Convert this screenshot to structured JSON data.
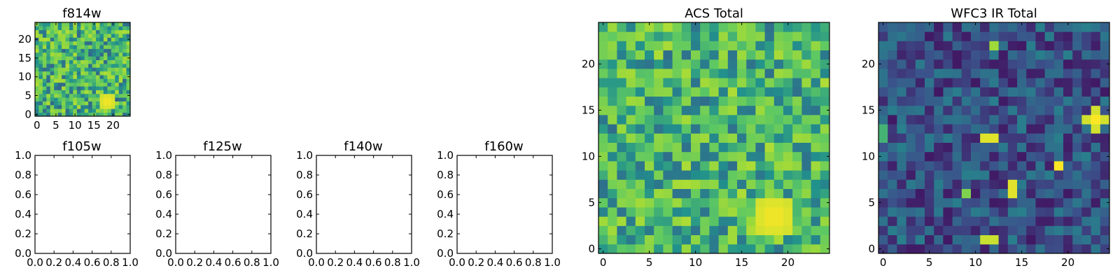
{
  "figure": {
    "description_free": true,
    "colormap": [
      "#440154",
      "#3b528b",
      "#21918c",
      "#5ec962",
      "#a0da39",
      "#fde725"
    ]
  },
  "chart_data": [
    {
      "id": "f814w",
      "type": "heatmap",
      "title": "f814w",
      "grid_size": 25,
      "xlim": [
        -0.5,
        24.5
      ],
      "ylim": [
        -0.5,
        24.5
      ],
      "xticks": [
        0,
        5,
        10,
        15,
        20
      ],
      "xtick_labels": [
        "0",
        "5",
        "10",
        "15",
        "20"
      ],
      "yticks": [
        0,
        5,
        10,
        15,
        20
      ],
      "ytick_labels": [
        "0",
        "5",
        "10",
        "15",
        "20"
      ],
      "noise": {
        "mean": 0.55,
        "spread": 0.18,
        "seed": 11
      },
      "hot_spots": [
        {
          "x": 18.5,
          "y": 3.5,
          "radius": 2.2,
          "value": 1.0
        }
      ]
    },
    {
      "id": "f105w",
      "type": "empty",
      "title": "f105w",
      "xticks": [
        0.0,
        0.2,
        0.4,
        0.6,
        0.8,
        1.0
      ],
      "xtick_labels": [
        "0.0",
        "0.2",
        "0.4",
        "0.6",
        "0.8",
        "1.0"
      ],
      "yticks": [
        0.0,
        0.2,
        0.4,
        0.6,
        0.8,
        1.0
      ],
      "ytick_labels": [
        "0.0",
        "0.2",
        "0.4",
        "0.6",
        "0.8",
        "1.0"
      ]
    },
    {
      "id": "f125w",
      "type": "empty",
      "title": "f125w",
      "xticks": [
        0.0,
        0.2,
        0.4,
        0.6,
        0.8,
        1.0
      ],
      "xtick_labels": [
        "0.0",
        "0.2",
        "0.4",
        "0.6",
        "0.8",
        "1.0"
      ],
      "yticks": [
        0.0,
        0.2,
        0.4,
        0.6,
        0.8,
        1.0
      ],
      "ytick_labels": [
        "0.0",
        "0.2",
        "0.4",
        "0.6",
        "0.8",
        "1.0"
      ]
    },
    {
      "id": "f140w",
      "type": "empty",
      "title": "f140w",
      "xticks": [
        0.0,
        0.2,
        0.4,
        0.6,
        0.8,
        1.0
      ],
      "xtick_labels": [
        "0.0",
        "0.2",
        "0.4",
        "0.6",
        "0.8",
        "1.0"
      ],
      "yticks": [
        0.0,
        0.2,
        0.4,
        0.6,
        0.8,
        1.0
      ],
      "ytick_labels": [
        "0.0",
        "0.2",
        "0.4",
        "0.6",
        "0.8",
        "1.0"
      ]
    },
    {
      "id": "f160w",
      "type": "empty",
      "title": "f160w",
      "xticks": [
        0.0,
        0.2,
        0.4,
        0.6,
        0.8,
        1.0
      ],
      "xtick_labels": [
        "0.0",
        "0.2",
        "0.4",
        "0.6",
        "0.8",
        "1.0"
      ],
      "yticks": [
        0.0,
        0.2,
        0.4,
        0.6,
        0.8,
        1.0
      ],
      "ytick_labels": [
        "0.0",
        "0.2",
        "0.4",
        "0.6",
        "0.8",
        "1.0"
      ]
    },
    {
      "id": "acs-total",
      "type": "heatmap",
      "title": "ACS Total",
      "grid_size": 25,
      "xlim": [
        -0.5,
        24.5
      ],
      "ylim": [
        -0.5,
        24.5
      ],
      "xticks": [
        0,
        5,
        10,
        15,
        20
      ],
      "xtick_labels": [
        "0",
        "5",
        "10",
        "15",
        "20"
      ],
      "yticks": [
        0,
        5,
        10,
        15,
        20
      ],
      "ytick_labels": [
        "0",
        "5",
        "10",
        "15",
        "20"
      ],
      "noise": {
        "mean": 0.56,
        "spread": 0.17,
        "seed": 23
      },
      "hot_spots": [
        {
          "x": 18.5,
          "y": 3.5,
          "radius": 2.4,
          "value": 1.0
        }
      ]
    },
    {
      "id": "wfc3-ir-total",
      "type": "heatmap",
      "title": "WFC3 IR Total",
      "grid_size": 25,
      "xlim": [
        -0.5,
        24.5
      ],
      "ylim": [
        -0.5,
        24.5
      ],
      "xticks": [
        0,
        5,
        10,
        15,
        20
      ],
      "xtick_labels": [
        "0",
        "5",
        "10",
        "15",
        "20"
      ],
      "yticks": [
        0,
        5,
        10,
        15,
        20
      ],
      "ytick_labels": [
        "0",
        "5",
        "10",
        "15",
        "20"
      ],
      "noise": {
        "mean": 0.2,
        "spread": 0.09,
        "seed": 37
      },
      "hot_spots": [
        {
          "x": 23,
          "y": 14,
          "radius": 1.1,
          "value": 1.0
        },
        {
          "x": 19,
          "y": 9,
          "radius": 0.9,
          "value": 1.0
        },
        {
          "x": 14,
          "y": 6.5,
          "radius": 0.8,
          "value": 1.0
        },
        {
          "x": 11.5,
          "y": 12,
          "radius": 0.8,
          "value": 1.0
        },
        {
          "x": 11.5,
          "y": 1,
          "radius": 0.8,
          "value": 0.95
        },
        {
          "x": 9,
          "y": 6,
          "radius": 0.6,
          "value": 0.7
        },
        {
          "x": 12,
          "y": 22,
          "radius": 0.6,
          "value": 0.8
        },
        {
          "x": 0,
          "y": 12.5,
          "radius": 0.6,
          "value": 0.6
        }
      ]
    }
  ]
}
